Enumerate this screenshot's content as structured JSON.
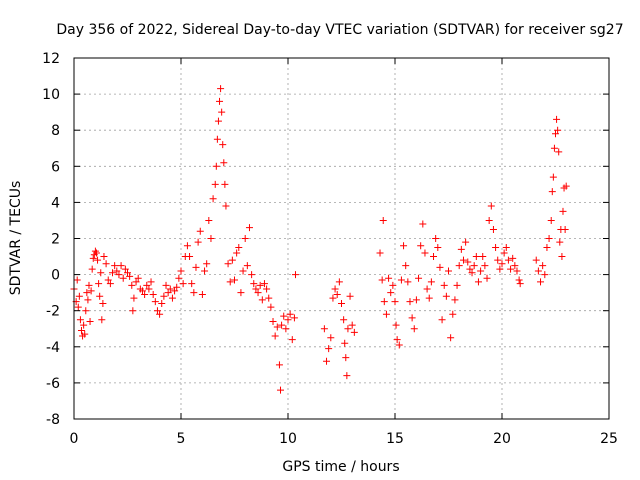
{
  "chart_data": {
    "type": "scatter",
    "title": "Day 356 of 2022, Sidereal Day-to-day VTEC variation (SDTVAR) for receiver sg27",
    "xlabel": "GPS time / hours",
    "ylabel": "SDTVAR / TECUs",
    "xlim": [
      0,
      25
    ],
    "ylim": [
      -8,
      12
    ],
    "xticks": [
      0,
      5,
      10,
      15,
      20,
      25
    ],
    "yticks": [
      -8,
      -6,
      -4,
      -2,
      0,
      2,
      4,
      6,
      8,
      10,
      12
    ],
    "grid": true,
    "marker": "+",
    "color": "#ff0000",
    "series": [
      {
        "name": "SDTVAR",
        "points": [
          [
            0.0,
            -0.8
          ],
          [
            0.1,
            -1.5
          ],
          [
            0.15,
            -0.3
          ],
          [
            0.2,
            -1.8
          ],
          [
            0.25,
            -1.2
          ],
          [
            0.3,
            -2.5
          ],
          [
            0.35,
            -3.1
          ],
          [
            0.4,
            -3.4
          ],
          [
            0.45,
            -2.8
          ],
          [
            0.5,
            -3.3
          ],
          [
            0.55,
            -2.0
          ],
          [
            0.6,
            -1.0
          ],
          [
            0.65,
            -1.4
          ],
          [
            0.7,
            -0.6
          ],
          [
            0.75,
            -2.6
          ],
          [
            0.8,
            -0.9
          ],
          [
            0.85,
            0.3
          ],
          [
            0.9,
            0.9
          ],
          [
            0.95,
            1.1
          ],
          [
            1.0,
            1.3
          ],
          [
            1.05,
            1.2
          ],
          [
            1.1,
            0.8
          ],
          [
            1.15,
            -0.5
          ],
          [
            1.2,
            -1.2
          ],
          [
            1.25,
            0.1
          ],
          [
            1.3,
            -2.5
          ],
          [
            1.35,
            -1.6
          ],
          [
            1.4,
            1.0
          ],
          [
            1.5,
            0.6
          ],
          [
            1.6,
            -0.3
          ],
          [
            1.7,
            -0.5
          ],
          [
            1.8,
            0.1
          ],
          [
            1.9,
            0.5
          ],
          [
            2.0,
            0.2
          ],
          [
            2.1,
            0.0
          ],
          [
            2.2,
            0.5
          ],
          [
            2.3,
            -0.2
          ],
          [
            2.4,
            0.3
          ],
          [
            2.5,
            0.1
          ],
          [
            2.6,
            -0.1
          ],
          [
            2.7,
            -0.6
          ],
          [
            2.75,
            -2.0
          ],
          [
            2.8,
            -1.3
          ],
          [
            2.9,
            -0.4
          ],
          [
            3.0,
            -0.2
          ],
          [
            3.1,
            -0.8
          ],
          [
            3.2,
            -0.9
          ],
          [
            3.3,
            -1.1
          ],
          [
            3.4,
            -0.6
          ],
          [
            3.5,
            -0.8
          ],
          [
            3.6,
            -0.4
          ],
          [
            3.7,
            -1.1
          ],
          [
            3.8,
            -1.5
          ],
          [
            3.9,
            -2.0
          ],
          [
            4.0,
            -2.2
          ],
          [
            4.1,
            -1.6
          ],
          [
            4.2,
            -1.2
          ],
          [
            4.3,
            -0.6
          ],
          [
            4.4,
            -1.0
          ],
          [
            4.5,
            -0.8
          ],
          [
            4.6,
            -1.3
          ],
          [
            4.7,
            -0.9
          ],
          [
            4.8,
            -0.7
          ],
          [
            4.9,
            -0.2
          ],
          [
            5.0,
            0.2
          ],
          [
            5.1,
            -0.5
          ],
          [
            5.2,
            1.0
          ],
          [
            5.3,
            1.6
          ],
          [
            5.4,
            1.0
          ],
          [
            5.5,
            -0.5
          ],
          [
            5.6,
            -1.0
          ],
          [
            5.7,
            0.4
          ],
          [
            5.8,
            1.8
          ],
          [
            5.9,
            2.4
          ],
          [
            6.0,
            -1.1
          ],
          [
            6.1,
            0.2
          ],
          [
            6.2,
            0.6
          ],
          [
            6.3,
            3.0
          ],
          [
            6.4,
            2.0
          ],
          [
            6.5,
            4.2
          ],
          [
            6.6,
            5.0
          ],
          [
            6.65,
            6.0
          ],
          [
            6.7,
            7.5
          ],
          [
            6.75,
            8.5
          ],
          [
            6.8,
            9.6
          ],
          [
            6.85,
            10.3
          ],
          [
            6.9,
            9.0
          ],
          [
            6.95,
            7.2
          ],
          [
            7.0,
            6.2
          ],
          [
            7.05,
            5.0
          ],
          [
            7.1,
            3.8
          ],
          [
            7.2,
            0.6
          ],
          [
            7.3,
            -0.4
          ],
          [
            7.4,
            0.8
          ],
          [
            7.5,
            -0.3
          ],
          [
            7.6,
            1.2
          ],
          [
            7.7,
            1.5
          ],
          [
            7.8,
            -1.0
          ],
          [
            7.9,
            0.2
          ],
          [
            8.0,
            2.0
          ],
          [
            8.1,
            0.5
          ],
          [
            8.2,
            2.6
          ],
          [
            8.3,
            0.0
          ],
          [
            8.4,
            -0.5
          ],
          [
            8.5,
            -0.8
          ],
          [
            8.6,
            -1.0
          ],
          [
            8.7,
            -0.6
          ],
          [
            8.8,
            -1.4
          ],
          [
            8.9,
            -0.5
          ],
          [
            9.0,
            -0.8
          ],
          [
            9.1,
            -1.3
          ],
          [
            9.2,
            -1.8
          ],
          [
            9.3,
            -2.6
          ],
          [
            9.4,
            -3.4
          ],
          [
            9.5,
            -2.9
          ],
          [
            9.6,
            -5.0
          ],
          [
            9.65,
            -6.4
          ],
          [
            9.7,
            -2.8
          ],
          [
            9.8,
            -2.3
          ],
          [
            9.9,
            -3.0
          ],
          [
            10.0,
            -2.5
          ],
          [
            10.1,
            -2.2
          ],
          [
            10.2,
            -3.6
          ],
          [
            10.3,
            -2.4
          ],
          [
            10.35,
            0.0
          ],
          [
            11.7,
            -3.0
          ],
          [
            11.8,
            -4.8
          ],
          [
            11.9,
            -4.1
          ],
          [
            12.0,
            -3.5
          ],
          [
            12.1,
            -1.3
          ],
          [
            12.2,
            -0.8
          ],
          [
            12.3,
            -1.1
          ],
          [
            12.4,
            -0.4
          ],
          [
            12.5,
            -1.6
          ],
          [
            12.6,
            -2.5
          ],
          [
            12.65,
            -3.8
          ],
          [
            12.7,
            -4.6
          ],
          [
            12.75,
            -5.6
          ],
          [
            12.8,
            -3.0
          ],
          [
            12.9,
            -1.2
          ],
          [
            13.0,
            -2.8
          ],
          [
            13.1,
            -3.2
          ],
          [
            14.3,
            1.2
          ],
          [
            14.4,
            -0.3
          ],
          [
            14.45,
            3.0
          ],
          [
            14.5,
            -1.5
          ],
          [
            14.6,
            -2.2
          ],
          [
            14.7,
            -0.2
          ],
          [
            14.8,
            -1.0
          ],
          [
            14.9,
            -0.6
          ],
          [
            15.0,
            -1.5
          ],
          [
            15.05,
            -2.8
          ],
          [
            15.1,
            -3.6
          ],
          [
            15.2,
            -3.9
          ],
          [
            15.3,
            -0.3
          ],
          [
            15.4,
            1.6
          ],
          [
            15.5,
            0.5
          ],
          [
            15.6,
            -0.4
          ],
          [
            15.7,
            -1.5
          ],
          [
            15.8,
            -2.4
          ],
          [
            15.9,
            -3.0
          ],
          [
            16.0,
            -1.4
          ],
          [
            16.1,
            -0.2
          ],
          [
            16.2,
            1.6
          ],
          [
            16.3,
            2.8
          ],
          [
            16.4,
            1.2
          ],
          [
            16.5,
            -0.8
          ],
          [
            16.6,
            -1.3
          ],
          [
            16.7,
            -0.4
          ],
          [
            16.8,
            1.0
          ],
          [
            16.9,
            2.0
          ],
          [
            17.0,
            1.5
          ],
          [
            17.1,
            0.4
          ],
          [
            17.2,
            -2.5
          ],
          [
            17.3,
            -0.6
          ],
          [
            17.4,
            -1.2
          ],
          [
            17.5,
            0.2
          ],
          [
            17.6,
            -3.5
          ],
          [
            17.7,
            -2.2
          ],
          [
            17.8,
            -1.4
          ],
          [
            17.9,
            -0.6
          ],
          [
            18.0,
            0.5
          ],
          [
            18.1,
            1.4
          ],
          [
            18.2,
            0.8
          ],
          [
            18.3,
            1.8
          ],
          [
            18.4,
            0.7
          ],
          [
            18.5,
            0.3
          ],
          [
            18.6,
            0.1
          ],
          [
            18.7,
            0.5
          ],
          [
            18.8,
            1.0
          ],
          [
            18.9,
            -0.4
          ],
          [
            19.0,
            0.2
          ],
          [
            19.1,
            1.0
          ],
          [
            19.2,
            0.5
          ],
          [
            19.3,
            -0.2
          ],
          [
            19.4,
            3.0
          ],
          [
            19.5,
            3.8
          ],
          [
            19.6,
            2.5
          ],
          [
            19.7,
            1.5
          ],
          [
            19.8,
            0.8
          ],
          [
            19.9,
            0.3
          ],
          [
            20.0,
            0.6
          ],
          [
            20.1,
            1.2
          ],
          [
            20.2,
            1.5
          ],
          [
            20.3,
            0.8
          ],
          [
            20.4,
            0.3
          ],
          [
            20.5,
            0.9
          ],
          [
            20.6,
            0.5
          ],
          [
            20.7,
            0.2
          ],
          [
            20.8,
            -0.3
          ],
          [
            20.85,
            -0.5
          ],
          [
            21.6,
            0.8
          ],
          [
            21.7,
            0.2
          ],
          [
            21.8,
            -0.4
          ],
          [
            21.9,
            0.5
          ],
          [
            22.0,
            0.0
          ],
          [
            22.1,
            1.5
          ],
          [
            22.2,
            2.0
          ],
          [
            22.3,
            3.0
          ],
          [
            22.35,
            4.6
          ],
          [
            22.4,
            5.4
          ],
          [
            22.45,
            7.0
          ],
          [
            22.5,
            7.8
          ],
          [
            22.55,
            8.6
          ],
          [
            22.6,
            8.0
          ],
          [
            22.65,
            6.8
          ],
          [
            22.7,
            1.8
          ],
          [
            22.75,
            2.5
          ],
          [
            22.8,
            1.0
          ],
          [
            22.85,
            3.5
          ],
          [
            22.9,
            4.8
          ],
          [
            22.95,
            2.5
          ],
          [
            23.0,
            4.9
          ]
        ]
      }
    ]
  }
}
